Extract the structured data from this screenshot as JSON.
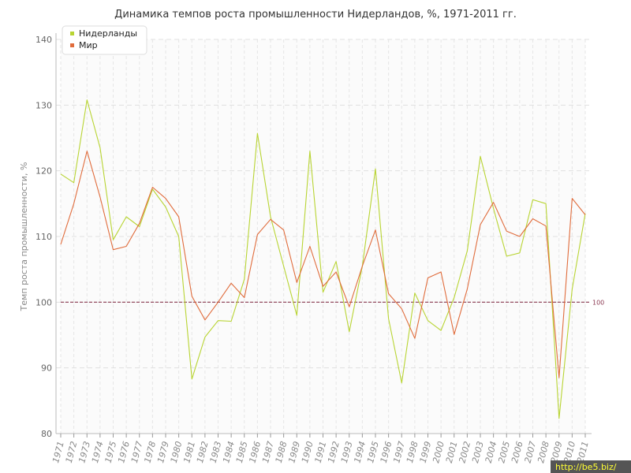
{
  "chart_data": {
    "type": "line",
    "title": "Динамика темпов роста промышленности Нидерландов, %, 1971-2011 гг.",
    "xlabel": "",
    "ylabel": "Темп роста промышленности, %",
    "ylim": [
      80,
      140
    ],
    "yticks": [
      80,
      90,
      100,
      110,
      120,
      130,
      140
    ],
    "grid": true,
    "legend_position": "top-left",
    "x": [
      1971,
      1972,
      1973,
      1974,
      1975,
      1976,
      1977,
      1978,
      1979,
      1980,
      1981,
      1982,
      1983,
      1984,
      1985,
      1986,
      1987,
      1988,
      1989,
      1990,
      1991,
      1992,
      1993,
      1994,
      1995,
      1996,
      1997,
      1998,
      1999,
      2000,
      2001,
      2002,
      2003,
      2004,
      2005,
      2006,
      2007,
      2008,
      2009,
      2010,
      2011
    ],
    "series": [
      {
        "name": "Нидерланды",
        "color": "#b8d432",
        "values": [
          119.5,
          118.2,
          130.8,
          123.5,
          109.5,
          113.0,
          111.5,
          117.2,
          114.5,
          110.0,
          88.3,
          94.7,
          97.2,
          97.1,
          103.5,
          125.7,
          113.0,
          105.5,
          98.0,
          123.0,
          101.5,
          106.2,
          95.5,
          105.5,
          120.3,
          97.5,
          87.7,
          101.4,
          97.2,
          95.7,
          100.7,
          107.8,
          122.2,
          114.3,
          107.0,
          107.5,
          115.6,
          115.0,
          82.3,
          102.0,
          113.5
        ]
      },
      {
        "name": "Мир",
        "color": "#e06c3c",
        "values": [
          108.8,
          115.0,
          123.0,
          116.0,
          108.0,
          108.5,
          112.0,
          117.5,
          115.8,
          113.0,
          100.9,
          97.3,
          100.0,
          102.9,
          100.7,
          110.3,
          112.6,
          111.0,
          103.0,
          108.5,
          102.4,
          104.6,
          99.3,
          105.5,
          111.0,
          101.3,
          99.0,
          94.5,
          103.7,
          104.6,
          95.1,
          102.0,
          111.8,
          115.2,
          110.8,
          110.0,
          112.7,
          111.6,
          88.5,
          115.8,
          113.3
        ]
      }
    ],
    "reference_line": {
      "value": 100,
      "label": "100",
      "color": "#8b3a52"
    }
  },
  "watermark": "http://be5.biz/"
}
